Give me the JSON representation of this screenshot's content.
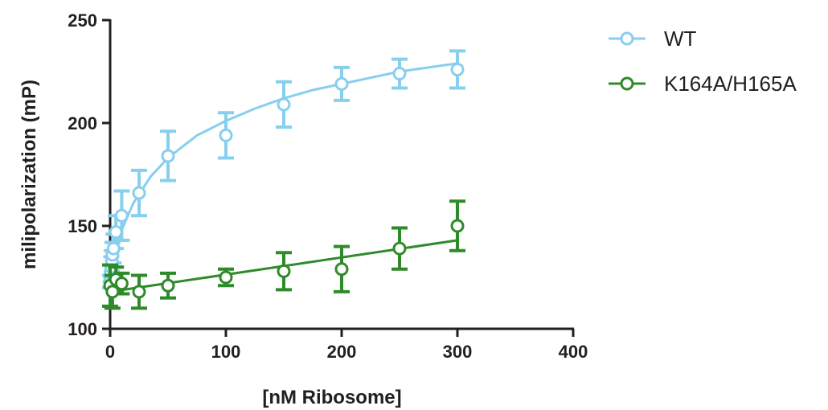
{
  "colors": {
    "axis": "#231f20",
    "wt": "#87cfee",
    "mutant": "#2f8a2a"
  },
  "chart_data": {
    "type": "scatter",
    "title": "",
    "xlabel": "[nM Ribosome]",
    "ylabel": "milipolarization (mP)",
    "xlim": [
      0,
      400
    ],
    "ylim": [
      100,
      250
    ],
    "xticks": [
      "0",
      "100",
      "200",
      "300",
      "400"
    ],
    "yticks": [
      "100",
      "150",
      "200",
      "250"
    ],
    "grid": false,
    "legend_position": "top-right",
    "marker": "open-circle",
    "series": [
      {
        "name": "WT",
        "color": "#87cfee",
        "x": [
          0,
          0.5,
          1,
          1.5,
          2,
          3,
          5,
          10,
          25,
          50,
          100,
          150,
          200,
          250,
          300
        ],
        "y": [
          123,
          127,
          130,
          133,
          136,
          139,
          147,
          155,
          166,
          184,
          194,
          209,
          219,
          224,
          226
        ],
        "error": [
          3,
          4,
          5,
          5,
          6,
          7,
          8,
          12,
          11,
          12,
          11,
          11,
          8,
          7,
          9
        ],
        "fit_x": [
          0,
          2,
          5,
          10,
          20,
          35,
          50,
          75,
          100,
          125,
          150,
          175,
          200,
          225,
          250,
          275,
          300
        ],
        "fit_y": [
          122,
          129,
          137,
          148,
          161,
          174,
          183,
          194,
          201,
          207,
          212,
          216,
          219,
          222,
          225,
          227,
          229
        ]
      },
      {
        "name": "K164A/H165A",
        "color": "#2f8a2a",
        "x": [
          0,
          2,
          5,
          10,
          25,
          50,
          100,
          150,
          200,
          250,
          300
        ],
        "y": [
          121,
          118,
          124,
          122,
          118,
          121,
          125,
          128,
          129,
          139,
          150
        ],
        "error": [
          10,
          8,
          6,
          5,
          8,
          6,
          4,
          9,
          11,
          10,
          12
        ],
        "fit_x": [
          0,
          300
        ],
        "fit_y": [
          118,
          143
        ]
      }
    ]
  }
}
